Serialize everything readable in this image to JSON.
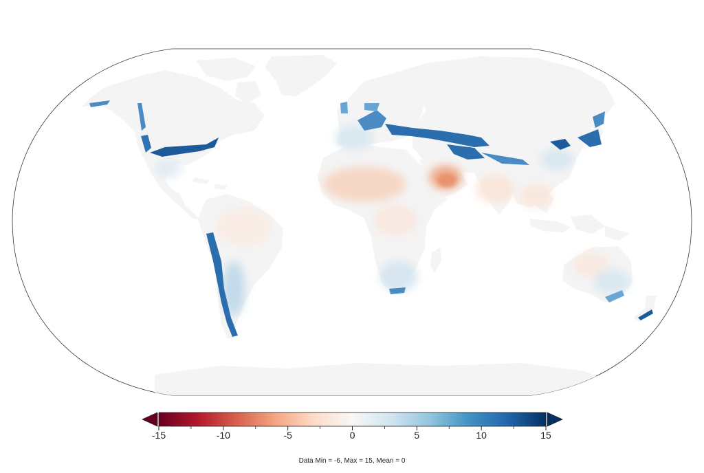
{
  "colorbar": {
    "min": -15,
    "max": 15,
    "extend": "both",
    "ticks": [
      {
        "value": -15,
        "label": "-15"
      },
      {
        "value": -10,
        "label": "-10"
      },
      {
        "value": -5,
        "label": "-5"
      },
      {
        "value": 0,
        "label": "0"
      },
      {
        "value": 5,
        "label": "5"
      },
      {
        "value": 10,
        "label": "10"
      },
      {
        "value": 15,
        "label": "15"
      }
    ],
    "minor_ticks": [
      -12.5,
      -7.5,
      -2.5,
      2.5,
      7.5,
      12.5
    ],
    "colors": [
      "#67001f",
      "#b2182b",
      "#d6604d",
      "#f4a582",
      "#fddbc7",
      "#f7f7f7",
      "#d1e5f0",
      "#92c5de",
      "#4393c3",
      "#2166ac",
      "#053061"
    ]
  },
  "stats_text": "Data Min = -6, Max = 15, Mean = 0",
  "map": {
    "projection": "Robinson",
    "land_color": "#f5f5f5",
    "ocean_color": "#ffffff",
    "outline_color": "#333333"
  }
}
